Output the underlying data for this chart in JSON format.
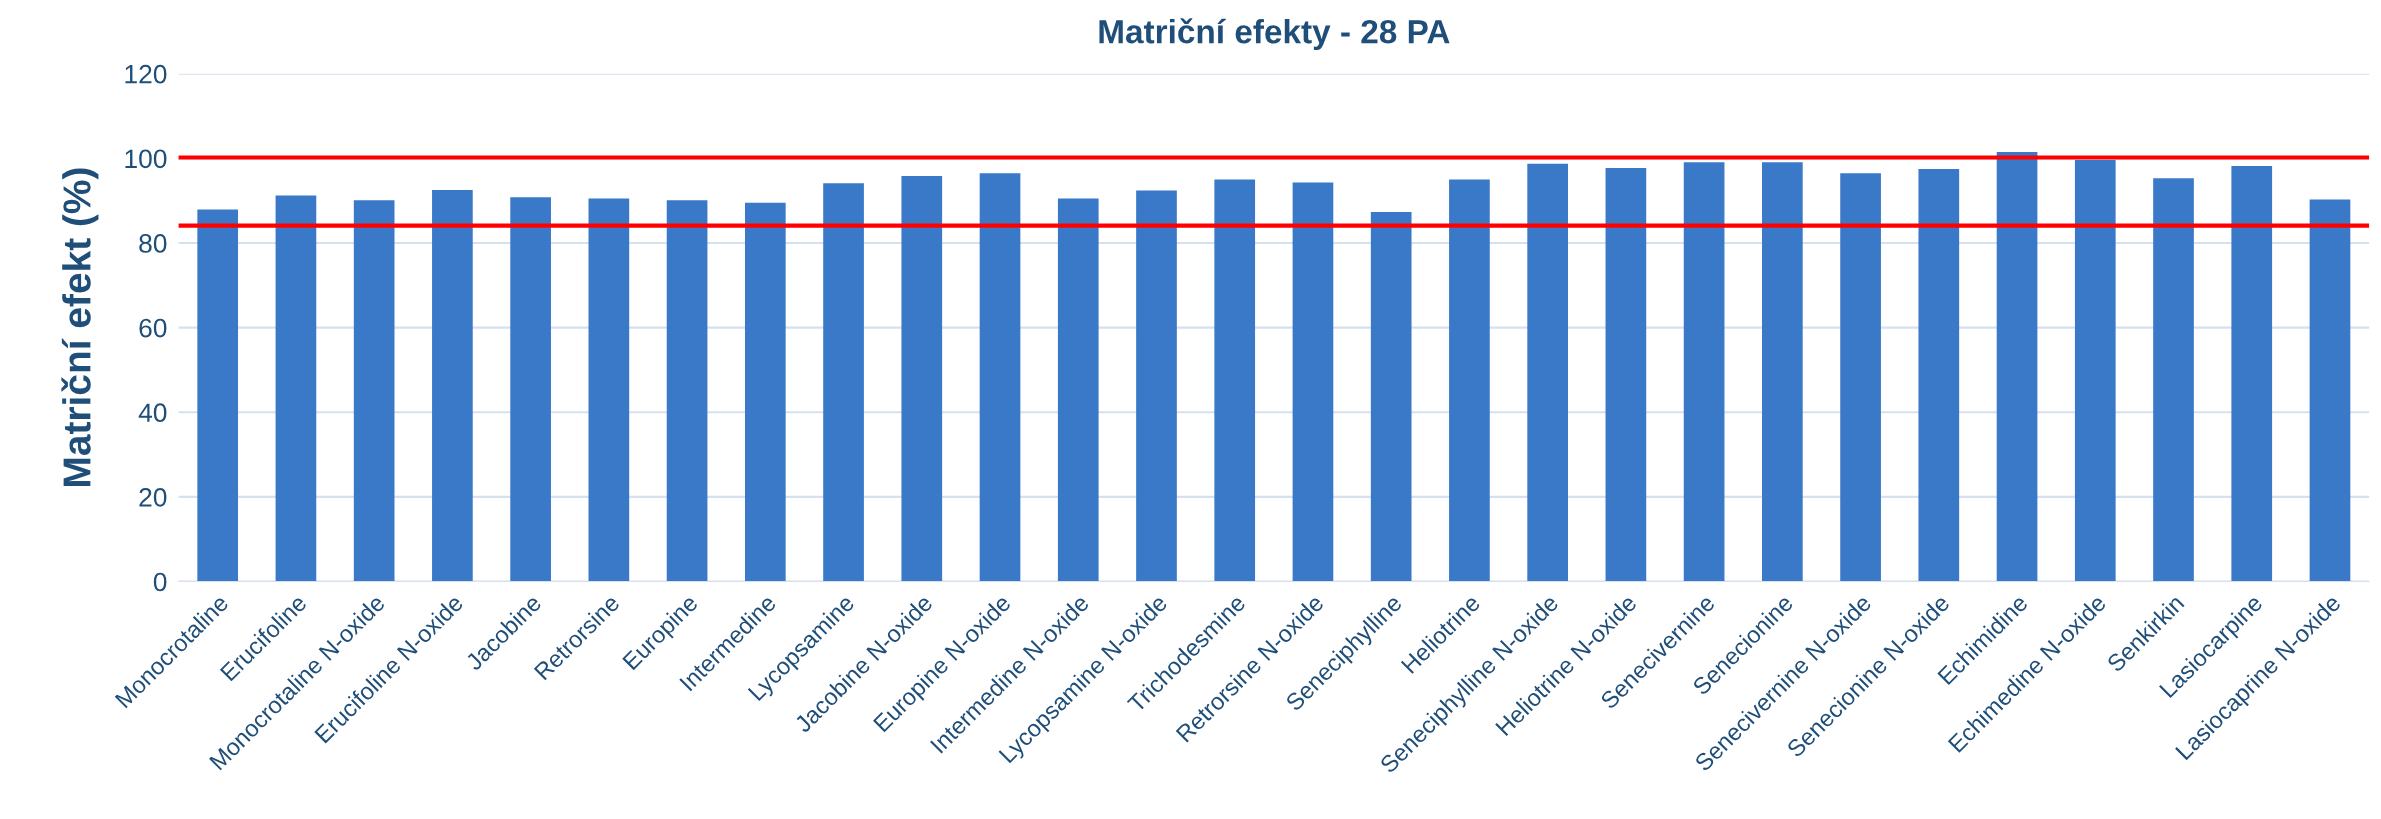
{
  "chart_data": {
    "type": "bar",
    "title": "Matriční efekty - 28 PA",
    "ylabel": "Matriční efekt (%)",
    "categories": [
      "Monocrotaline",
      "Erucifoline",
      "Monocrotaline N-oxide",
      "Erucifoline N-oxide",
      "Jacobine",
      "Retrorsine",
      "Europine",
      "Intermedine",
      "Lycopsamine",
      "Jacobine N-oxide",
      "Europine N-oxide",
      "Intermedine N-oxide",
      "Lycopsamine N-oxide",
      "Trichodesmine",
      "Retrorsine N-oxide",
      "Seneciphylline",
      "Heliotrine",
      "Seneciphylline N-oxide",
      "Heliotrine N-oxide",
      "Senecivernine",
      "Senecionine",
      "Senecivernine N-oxide",
      "Senecionine N-oxide",
      "Echimidine",
      "Echimedine N-oxide",
      "Senkirkin",
      "Lasiocarpine",
      "Lasiocaprine N-oxide"
    ],
    "values": [
      87.9,
      91.2,
      90.1,
      92.5,
      90.8,
      90.5,
      90.1,
      89.5,
      94.1,
      95.8,
      96.5,
      90.5,
      92.4,
      95.0,
      94.3,
      87.3,
      95.0,
      98.7,
      97.7,
      99.1,
      99.1,
      96.5,
      97.5,
      101.5,
      99.6,
      95.3,
      98.2,
      90.3
    ],
    "color": "#3a78c8",
    "ylim": [
      0,
      120
    ],
    "yticks": [
      0,
      20,
      40,
      60,
      80,
      100,
      120
    ],
    "grid": "y",
    "ref_lines": [
      {
        "axis": "y",
        "value": 100.2,
        "color": "#ff0000"
      },
      {
        "axis": "y",
        "value": 84.1,
        "color": "#ff0000"
      }
    ]
  }
}
